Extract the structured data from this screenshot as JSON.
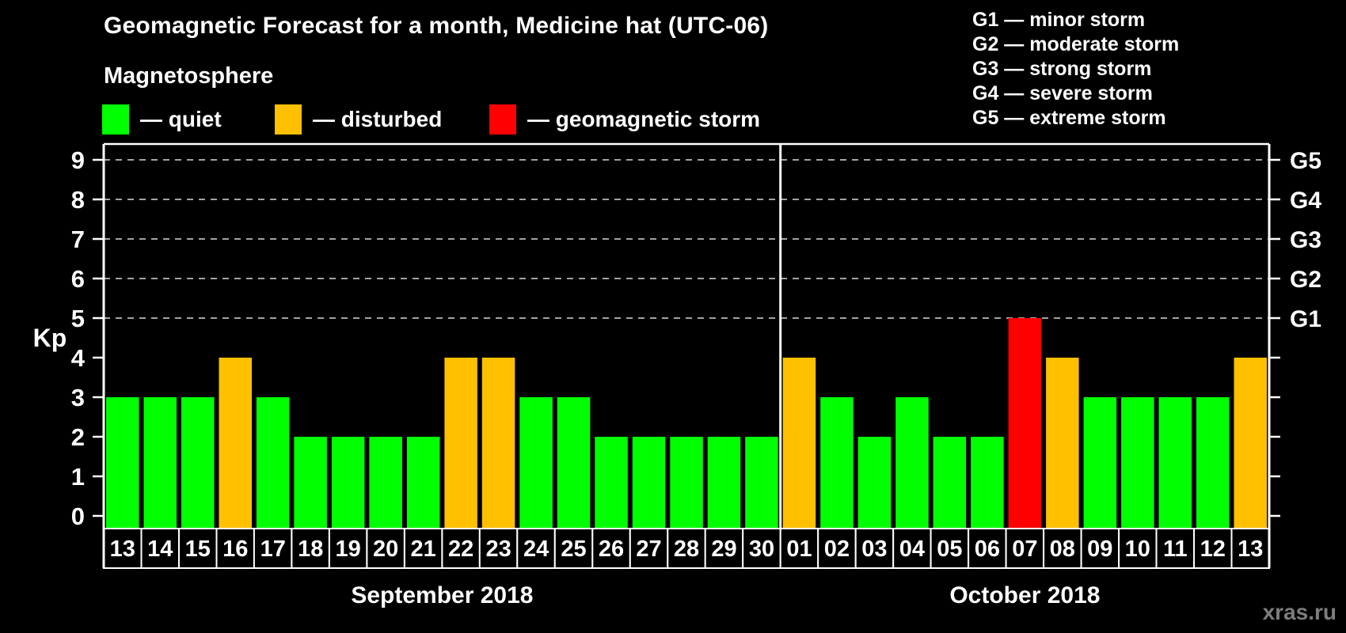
{
  "title": "Geomagnetic Forecast for a month, Medicine hat (UTC-06)",
  "legend": {
    "title": "Magnetosphere",
    "items": [
      {
        "key": "quiet",
        "label": "— quiet",
        "color": "#00ff00"
      },
      {
        "key": "disturbed",
        "label": "— disturbed",
        "color": "#ffc000"
      },
      {
        "key": "storm",
        "label": "— geomagnetic storm",
        "color": "#ff0000"
      }
    ]
  },
  "g_scale_legend": [
    "G1 — minor storm",
    "G2 — moderate storm",
    "G3 — strong storm",
    "G4 — severe storm",
    "G5 — extreme storm"
  ],
  "watermark": "xras.ru",
  "chart_data": {
    "type": "bar",
    "ylabel": "Kp",
    "ylim": [
      -0.32,
      9.4
    ],
    "y_ticks": [
      0,
      1,
      2,
      3,
      4,
      5,
      6,
      7,
      8,
      9
    ],
    "gridlines_at": [
      5,
      6,
      7,
      8,
      9
    ],
    "grid": "dashed-horizontal",
    "right_axis_labels": [
      {
        "kp": 5,
        "label": "G1"
      },
      {
        "kp": 6,
        "label": "G2"
      },
      {
        "kp": 7,
        "label": "G3"
      },
      {
        "kp": 8,
        "label": "G4"
      },
      {
        "kp": 9,
        "label": "G5"
      }
    ],
    "colors": {
      "quiet": "#00ff00",
      "disturbed": "#ffc000",
      "storm": "#ff0000"
    },
    "groups": [
      {
        "label": "September 2018",
        "days": [
          {
            "day": "13",
            "kp": 3,
            "status": "quiet"
          },
          {
            "day": "14",
            "kp": 3,
            "status": "quiet"
          },
          {
            "day": "15",
            "kp": 3,
            "status": "quiet"
          },
          {
            "day": "16",
            "kp": 4,
            "status": "disturbed"
          },
          {
            "day": "17",
            "kp": 3,
            "status": "quiet"
          },
          {
            "day": "18",
            "kp": 2,
            "status": "quiet"
          },
          {
            "day": "19",
            "kp": 2,
            "status": "quiet"
          },
          {
            "day": "20",
            "kp": 2,
            "status": "quiet"
          },
          {
            "day": "21",
            "kp": 2,
            "status": "quiet"
          },
          {
            "day": "22",
            "kp": 4,
            "status": "disturbed"
          },
          {
            "day": "23",
            "kp": 4,
            "status": "disturbed"
          },
          {
            "day": "24",
            "kp": 3,
            "status": "quiet"
          },
          {
            "day": "25",
            "kp": 3,
            "status": "quiet"
          },
          {
            "day": "26",
            "kp": 2,
            "status": "quiet"
          },
          {
            "day": "27",
            "kp": 2,
            "status": "quiet"
          },
          {
            "day": "28",
            "kp": 2,
            "status": "quiet"
          },
          {
            "day": "29",
            "kp": 2,
            "status": "quiet"
          },
          {
            "day": "30",
            "kp": 2,
            "status": "quiet"
          }
        ]
      },
      {
        "label": "October 2018",
        "days": [
          {
            "day": "01",
            "kp": 4,
            "status": "disturbed"
          },
          {
            "day": "02",
            "kp": 3,
            "status": "quiet"
          },
          {
            "day": "03",
            "kp": 2,
            "status": "quiet"
          },
          {
            "day": "04",
            "kp": 3,
            "status": "quiet"
          },
          {
            "day": "05",
            "kp": 2,
            "status": "quiet"
          },
          {
            "day": "06",
            "kp": 2,
            "status": "quiet"
          },
          {
            "day": "07",
            "kp": 5,
            "status": "storm"
          },
          {
            "day": "08",
            "kp": 4,
            "status": "disturbed"
          },
          {
            "day": "09",
            "kp": 3,
            "status": "quiet"
          },
          {
            "day": "10",
            "kp": 3,
            "status": "quiet"
          },
          {
            "day": "11",
            "kp": 3,
            "status": "quiet"
          },
          {
            "day": "12",
            "kp": 3,
            "status": "quiet"
          },
          {
            "day": "13",
            "kp": 4,
            "status": "disturbed"
          }
        ]
      }
    ]
  }
}
